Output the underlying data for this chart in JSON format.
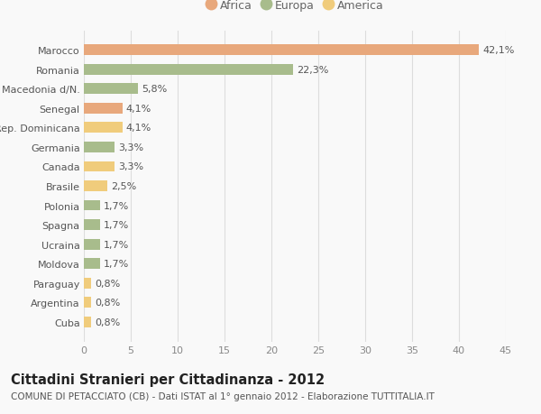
{
  "categories": [
    "Marocco",
    "Romania",
    "Macedonia d/N.",
    "Senegal",
    "Rep. Dominicana",
    "Germania",
    "Canada",
    "Brasile",
    "Polonia",
    "Spagna",
    "Ucraina",
    "Moldova",
    "Paraguay",
    "Argentina",
    "Cuba"
  ],
  "values": [
    42.1,
    22.3,
    5.8,
    4.1,
    4.1,
    3.3,
    3.3,
    2.5,
    1.7,
    1.7,
    1.7,
    1.7,
    0.8,
    0.8,
    0.8
  ],
  "labels": [
    "42,1%",
    "22,3%",
    "5,8%",
    "4,1%",
    "4,1%",
    "3,3%",
    "3,3%",
    "2,5%",
    "1,7%",
    "1,7%",
    "1,7%",
    "1,7%",
    "0,8%",
    "0,8%",
    "0,8%"
  ],
  "colors": [
    "#e8a87c",
    "#a8bc8c",
    "#a8bc8c",
    "#e8a87c",
    "#f0cc7c",
    "#a8bc8c",
    "#f0cc7c",
    "#f0cc7c",
    "#a8bc8c",
    "#a8bc8c",
    "#a8bc8c",
    "#a8bc8c",
    "#f0cc7c",
    "#f0cc7c",
    "#f0cc7c"
  ],
  "continent": [
    "Africa",
    "Europa",
    "Europa",
    "Africa",
    "America",
    "Europa",
    "America",
    "America",
    "Europa",
    "Europa",
    "Europa",
    "Europa",
    "America",
    "America",
    "America"
  ],
  "legend_labels": [
    "Africa",
    "Europa",
    "America"
  ],
  "legend_colors": [
    "#e8a87c",
    "#a8bc8c",
    "#f0cc7c"
  ],
  "title": "Cittadini Stranieri per Cittadinanza - 2012",
  "subtitle": "COMUNE DI PETACCIATO (CB) - Dati ISTAT al 1° gennaio 2012 - Elaborazione TUTTITALIA.IT",
  "xlim": [
    0,
    45
  ],
  "xticks": [
    0,
    5,
    10,
    15,
    20,
    25,
    30,
    35,
    40,
    45
  ],
  "background_color": "#f9f9f9",
  "grid_color": "#dddddd",
  "bar_height": 0.55,
  "label_fontsize": 8,
  "tick_fontsize": 8,
  "title_fontsize": 10.5,
  "subtitle_fontsize": 7.5
}
